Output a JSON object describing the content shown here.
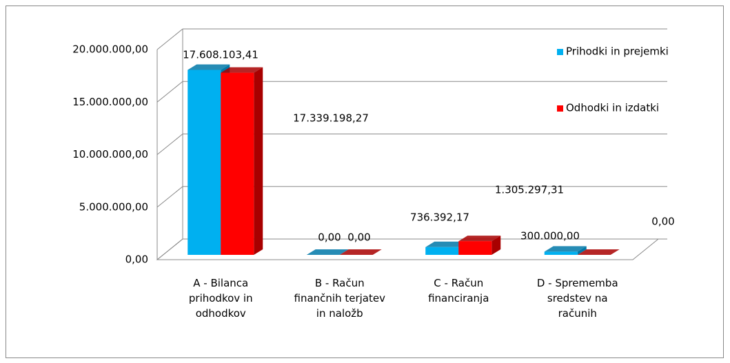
{
  "chart_data": {
    "type": "bar3d",
    "categories": [
      "A - Bilanca prihodkov in odhodkov",
      "B - Račun finančnih terjatev in naložb",
      "C - Račun financiranja",
      "D - Sprememba sredstev na računih"
    ],
    "series": [
      {
        "name": "Prihodki in prejemki",
        "color": "#00b0f0",
        "side": "#0078a8",
        "values": [
          17608103.41,
          0,
          736392.17,
          300000
        ],
        "value_labels": [
          "17.608.103,41",
          "0,00",
          "736.392,17",
          "300.000,00"
        ]
      },
      {
        "name": "Odhodki in izdatki",
        "color": "#ff0000",
        "side": "#a80000",
        "values": [
          17339198.27,
          0,
          1305297.31,
          0
        ],
        "value_labels": [
          "17.339.198,27",
          "0,00",
          "1.305.297,31",
          "0,00"
        ]
      }
    ],
    "ylim": [
      0,
      20000000
    ],
    "yticks": [
      {
        "value": 0,
        "label": "0,00"
      },
      {
        "value": 5000000,
        "label": "5.000.000,00"
      },
      {
        "value": 10000000,
        "label": "10.000.000,00"
      },
      {
        "value": 15000000,
        "label": "15.000.000,00"
      },
      {
        "value": 20000000,
        "label": "20.000.000,00"
      }
    ],
    "grid": true,
    "legend": "top-right"
  }
}
